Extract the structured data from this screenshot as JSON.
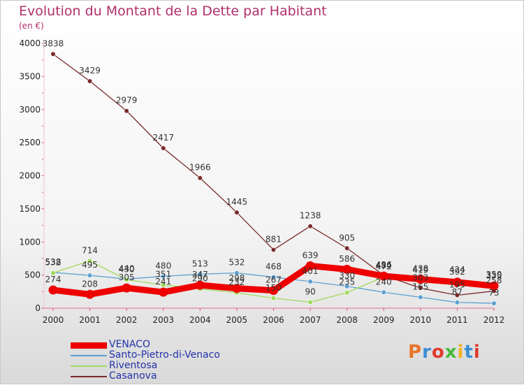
{
  "title": "Evolution du Montant de la Dette par Habitant",
  "subtitle": "(en €)",
  "logo": {
    "text": "Proxiti",
    "colors": [
      "#e8732a",
      "#3b8fd6",
      "#e03a2e",
      "#47b83c",
      "#f0b21f",
      "#3b8fd6",
      "#e03a2e"
    ]
  },
  "chart_data": {
    "type": "line",
    "title": "Evolution du Montant de la Dette par Habitant",
    "ylabel": "(en €)",
    "xlabel": "",
    "x": [
      "2000",
      "2001",
      "2002",
      "2003",
      "2004",
      "2005",
      "2006",
      "2007",
      "2008",
      "2009",
      "2010",
      "2011",
      "2012"
    ],
    "ylim": [
      0,
      4000
    ],
    "yticks": [
      "0",
      "500",
      "1000",
      "1500",
      "2000",
      "2500",
      "3000",
      "3500",
      "4000"
    ],
    "grid": false,
    "legend_position": "bottom-left",
    "series": [
      {
        "name": "VENACO",
        "color": "#ee0000",
        "values": [
          274,
          208,
          305,
          241,
          347,
          298,
          267,
          639,
          586,
          484,
          438,
          392,
          335
        ]
      },
      {
        "name": "Santo-Pietro-di-Venaco",
        "color": "#5aa0d2",
        "values": [
          538,
          495,
          440,
          480,
          513,
          532,
          468,
          401,
          330,
          240,
          165,
          87,
          73
        ]
      },
      {
        "name": "Riventosa",
        "color": "#9fdb5a",
        "values": [
          532,
          714,
          430,
          351,
          290,
          232,
          150,
          90,
          235,
          472,
          419,
          424,
          350
        ]
      },
      {
        "name": "Casanova",
        "color": "#7a2a2a",
        "values": [
          3838,
          3429,
          2979,
          2417,
          1966,
          1445,
          881,
          1238,
          905,
          496,
          303,
          195,
          258
        ]
      }
    ]
  }
}
